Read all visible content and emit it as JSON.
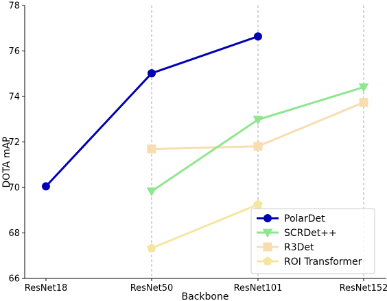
{
  "chart_data": {
    "type": "line",
    "categories": [
      "ResNet18",
      "ResNet50",
      "ResNet101",
      "ResNet152"
    ],
    "xlabel": "Backbone",
    "ylabel": "DOTA mAP",
    "ylim": [
      66,
      78
    ],
    "yticks": [
      "66",
      "68",
      "70",
      "72",
      "74",
      "76",
      "78"
    ],
    "grid": "vertical dashed at ResNet50, ResNet101, ResNet152",
    "legend_position": "bottom-right",
    "series": [
      {
        "name": "PolarDet",
        "color": "#0000b4",
        "marker": "circle",
        "values": [
          70.05,
          75.02,
          76.64,
          null
        ]
      },
      {
        "name": "SCRDet++",
        "color": "#8ee68e",
        "marker": "triangle-down",
        "values": [
          null,
          69.83,
          72.98,
          74.41
        ]
      },
      {
        "name": "R3Det",
        "color": "#f8ddb0",
        "marker": "square",
        "values": [
          null,
          71.69,
          71.81,
          73.74
        ]
      },
      {
        "name": "ROI Transformer",
        "color": "#f4e6a0",
        "marker": "pentagon",
        "values": [
          null,
          67.33,
          69.25,
          null
        ]
      }
    ]
  }
}
